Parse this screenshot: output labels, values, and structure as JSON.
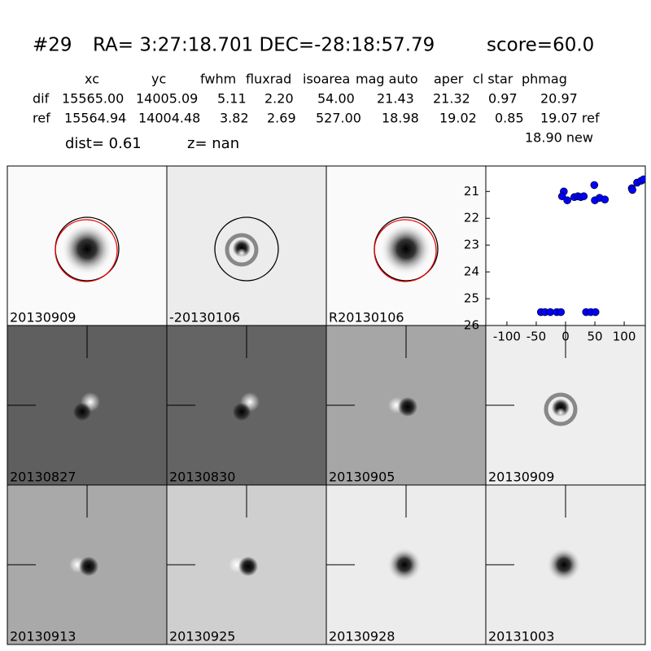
{
  "header": {
    "id": "#29",
    "coords": "RA= 3:27:18.701 DEC=-28:18:57.79",
    "score": "score=60.0"
  },
  "table": {
    "columns": [
      "xc",
      "yc",
      "fwhm",
      "fluxrad",
      "isoarea",
      "mag auto",
      "aper",
      "cl star",
      "phmag"
    ],
    "rows": [
      [
        "dif",
        "15565.00",
        "14005.09",
        "5.11",
        "2.20",
        "54.00",
        "21.43",
        "21.32",
        "0.97",
        "20.97"
      ],
      [
        "ref",
        "15564.94",
        "14004.48",
        "3.82",
        "2.69",
        "527.00",
        "18.98",
        "19.02",
        "0.85",
        "19.07 ref"
      ]
    ],
    "extra": "18.90 new",
    "dist": "dist=  0.61",
    "z": "z=   nan"
  },
  "panels": [
    {
      "label": "20130909"
    },
    {
      "label": "-20130106"
    },
    {
      "label": "R20130106"
    },
    {
      "label": "20130827"
    },
    {
      "label": "20130830"
    },
    {
      "label": "20130905"
    },
    {
      "label": "20130909",
      "color": "#ff0000"
    },
    {
      "label": "20130913"
    },
    {
      "label": "20130925"
    },
    {
      "label": "20130928"
    },
    {
      "label": "20131003"
    }
  ],
  "chart_data": {
    "type": "scatter",
    "x": [
      -3,
      -6,
      3,
      15,
      21,
      26,
      31,
      49,
      50,
      58,
      67,
      113,
      114,
      122,
      129,
      133,
      -42,
      -35,
      -26,
      -15,
      -8,
      35,
      43,
      51
    ],
    "values": [
      21.0,
      21.18,
      21.33,
      21.21,
      21.18,
      21.21,
      21.18,
      20.76,
      21.33,
      21.24,
      21.3,
      20.88,
      20.94,
      20.67,
      20.6,
      20.55,
      25.5,
      25.5,
      25.5,
      25.5,
      25.5,
      25.5,
      25.5,
      25.5
    ],
    "color": "#0000ff",
    "xlim": [
      -136,
      136
    ],
    "ylim": [
      26,
      20.05
    ],
    "xticks": [
      -100,
      -50,
      0,
      50,
      100
    ],
    "yticks": [
      21,
      22,
      23,
      24,
      25,
      26
    ]
  }
}
